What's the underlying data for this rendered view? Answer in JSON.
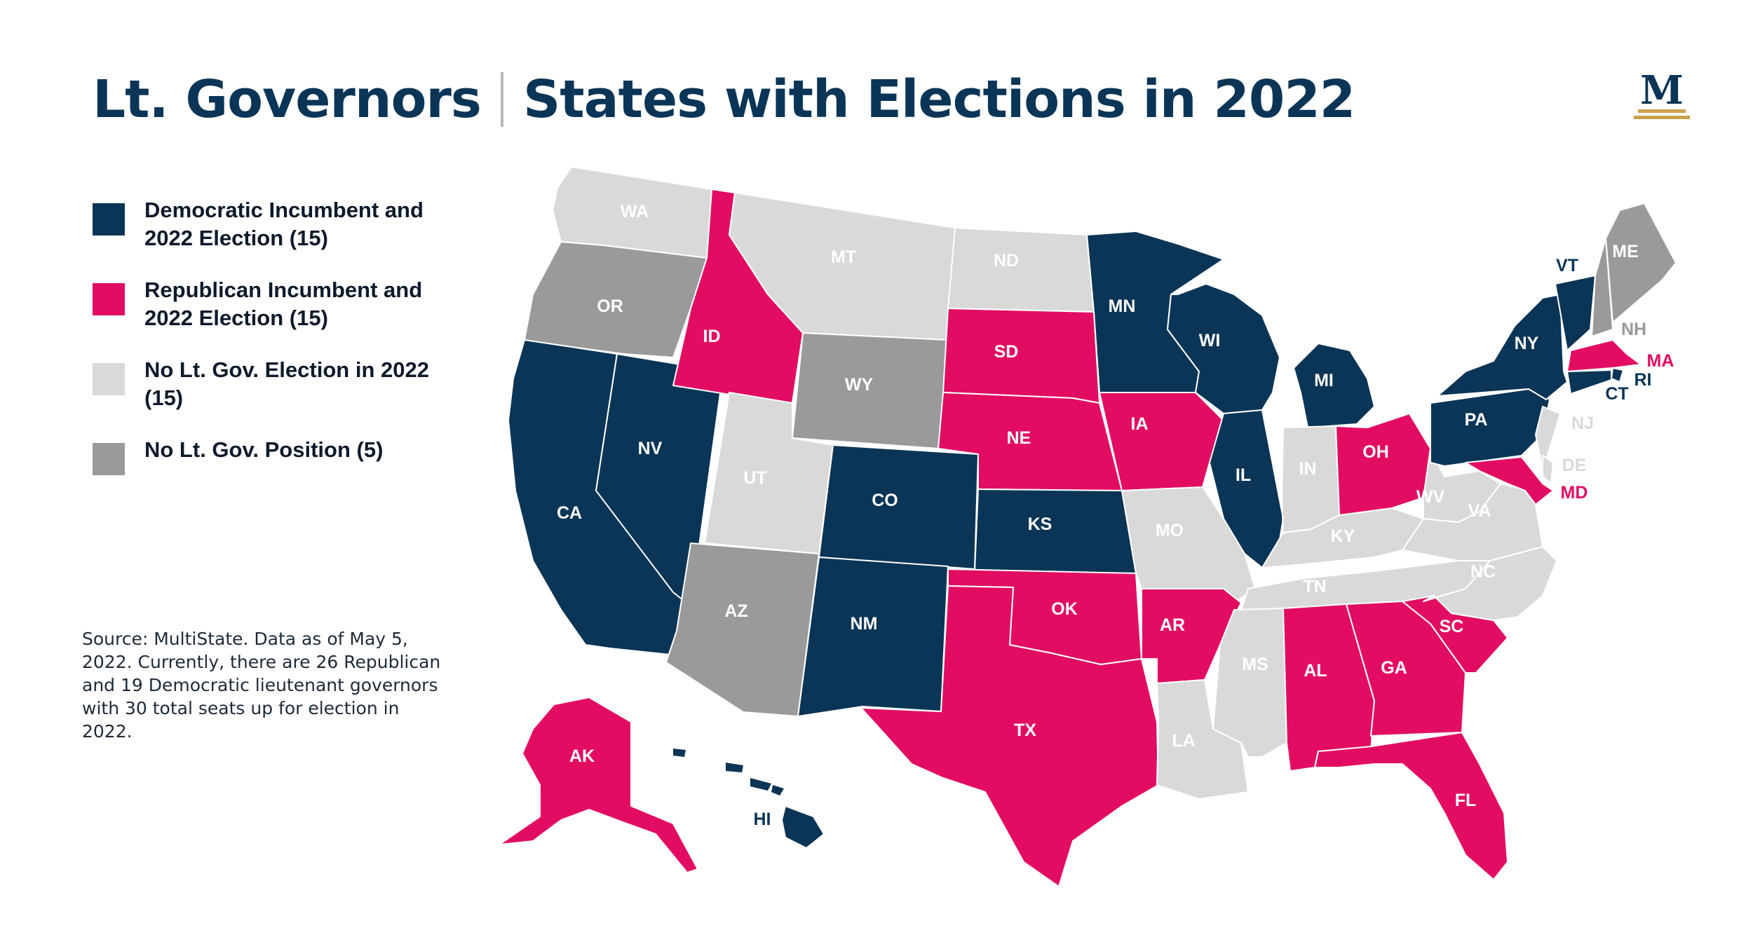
{
  "title": {
    "part1": "Lt. Governors",
    "part2": "States with Elections in 2022"
  },
  "logo": {
    "letter": "M"
  },
  "colors": {
    "dem": "#0b3556",
    "rep": "#e20d62",
    "no_election": "#d9d9d9",
    "no_position": "#9a9a9a",
    "gold": "#c9a24e"
  },
  "legend": [
    {
      "key": "dem",
      "label": "Democratic Incumbent and 2022 Election (15)"
    },
    {
      "key": "rep",
      "label": "Republican Incumbent and 2022 Election (15)"
    },
    {
      "key": "no_election",
      "label": "No Lt. Gov. Election in 2022 (15)"
    },
    {
      "key": "no_position",
      "label": "No Lt. Gov. Position (5)"
    }
  ],
  "source": "Source: MultiState. Data as of May 5, 2022. Currently, there are 26 Republican and 19 Democratic lieutenant governors with 30 total seats up for election in 2022.",
  "states": [
    {
      "abbr": "WA",
      "status": "no_election"
    },
    {
      "abbr": "OR",
      "status": "no_position"
    },
    {
      "abbr": "CA",
      "status": "dem"
    },
    {
      "abbr": "NV",
      "status": "dem"
    },
    {
      "abbr": "ID",
      "status": "rep"
    },
    {
      "abbr": "MT",
      "status": "no_election"
    },
    {
      "abbr": "WY",
      "status": "no_position"
    },
    {
      "abbr": "UT",
      "status": "no_election"
    },
    {
      "abbr": "AZ",
      "status": "no_position"
    },
    {
      "abbr": "CO",
      "status": "dem"
    },
    {
      "abbr": "NM",
      "status": "dem"
    },
    {
      "abbr": "ND",
      "status": "no_election"
    },
    {
      "abbr": "SD",
      "status": "rep"
    },
    {
      "abbr": "NE",
      "status": "rep"
    },
    {
      "abbr": "KS",
      "status": "dem"
    },
    {
      "abbr": "OK",
      "status": "rep"
    },
    {
      "abbr": "TX",
      "status": "rep"
    },
    {
      "abbr": "MN",
      "status": "dem"
    },
    {
      "abbr": "IA",
      "status": "rep"
    },
    {
      "abbr": "MO",
      "status": "no_election"
    },
    {
      "abbr": "AR",
      "status": "rep"
    },
    {
      "abbr": "LA",
      "status": "no_election"
    },
    {
      "abbr": "WI",
      "status": "dem"
    },
    {
      "abbr": "IL",
      "status": "dem"
    },
    {
      "abbr": "MI",
      "status": "dem"
    },
    {
      "abbr": "IN",
      "status": "no_election"
    },
    {
      "abbr": "OH",
      "status": "rep"
    },
    {
      "abbr": "KY",
      "status": "no_election"
    },
    {
      "abbr": "TN",
      "status": "no_election"
    },
    {
      "abbr": "MS",
      "status": "no_election"
    },
    {
      "abbr": "AL",
      "status": "rep"
    },
    {
      "abbr": "GA",
      "status": "rep"
    },
    {
      "abbr": "FL",
      "status": "rep"
    },
    {
      "abbr": "SC",
      "status": "rep"
    },
    {
      "abbr": "NC",
      "status": "no_election"
    },
    {
      "abbr": "VA",
      "status": "no_election"
    },
    {
      "abbr": "WV",
      "status": "no_election"
    },
    {
      "abbr": "PA",
      "status": "dem"
    },
    {
      "abbr": "NY",
      "status": "dem"
    },
    {
      "abbr": "VT",
      "status": "dem"
    },
    {
      "abbr": "NH",
      "status": "no_position"
    },
    {
      "abbr": "ME",
      "status": "no_position"
    },
    {
      "abbr": "MA",
      "status": "rep"
    },
    {
      "abbr": "RI",
      "status": "dem"
    },
    {
      "abbr": "CT",
      "status": "dem"
    },
    {
      "abbr": "NJ",
      "status": "no_election"
    },
    {
      "abbr": "DE",
      "status": "no_election"
    },
    {
      "abbr": "MD",
      "status": "rep"
    },
    {
      "abbr": "AK",
      "status": "rep"
    },
    {
      "abbr": "HI",
      "status": "dem"
    }
  ]
}
